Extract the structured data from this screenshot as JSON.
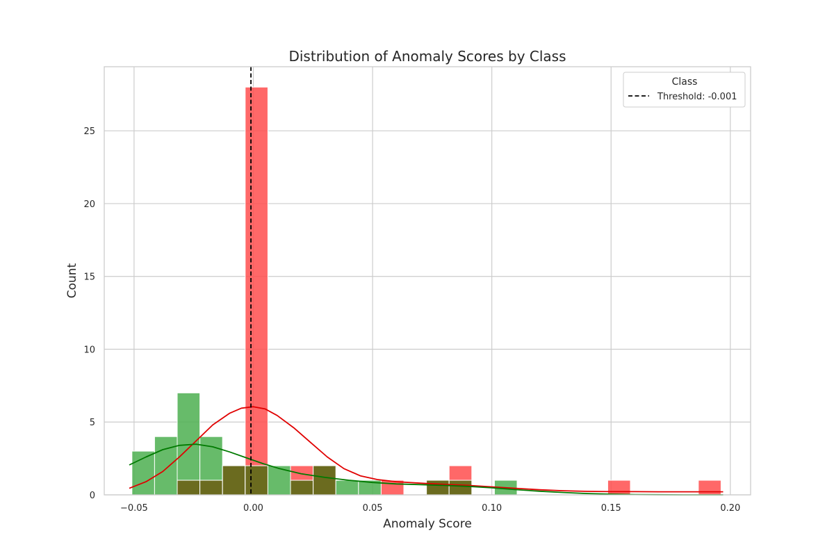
{
  "chart_data": {
    "type": "bar",
    "subtype": "overlaid-histogram-with-kde",
    "title": "Distribution of Anomaly Scores by Class",
    "xlabel": "Anomaly Score",
    "ylabel": "Count",
    "xlim": [
      -0.0625,
      0.2085
    ],
    "ylim": [
      0,
      29.4
    ],
    "xticks": [
      -0.05,
      0.0,
      0.05,
      0.1,
      0.15,
      0.2
    ],
    "xtick_labels": [
      "−0.05",
      "0.00",
      "0.05",
      "0.10",
      "0.15",
      "0.20"
    ],
    "yticks": [
      0,
      5,
      10,
      15,
      20,
      25
    ],
    "ytick_labels": [
      "0",
      "5",
      "10",
      "15",
      "20",
      "25"
    ],
    "grid": true,
    "bin_edges": [
      -0.0509,
      -0.0414,
      -0.0319,
      -0.0224,
      -0.0129,
      -0.0034,
      0.0061,
      0.0156,
      0.0251,
      0.0346,
      0.0441,
      0.0536,
      0.0631,
      0.0726,
      0.0821,
      0.0916,
      0.1011,
      0.1106,
      0.1201,
      0.1296,
      0.1391,
      0.1486,
      0.1581,
      0.1676,
      0.1771,
      0.1866,
      0.1961
    ],
    "series": [
      {
        "color": "#4caf50",
        "counts": [
          3,
          4,
          7,
          4,
          2,
          2,
          2,
          1,
          2,
          1,
          1,
          0,
          0,
          1,
          1,
          0,
          1,
          0,
          0,
          0,
          0,
          0,
          0,
          0,
          0,
          0
        ],
        "kde": {
          "x": [
            -0.052,
            -0.045,
            -0.038,
            -0.031,
            -0.024,
            -0.017,
            -0.01,
            -0.003,
            0.004,
            0.011,
            0.02,
            0.03,
            0.04,
            0.05,
            0.06,
            0.07,
            0.08,
            0.09,
            0.1,
            0.11,
            0.12,
            0.13,
            0.14,
            0.15,
            0.16,
            0.17,
            0.18,
            0.19,
            0.197
          ],
          "y": [
            2.05,
            2.6,
            3.1,
            3.4,
            3.48,
            3.3,
            2.95,
            2.55,
            2.15,
            1.8,
            1.45,
            1.2,
            1.0,
            0.85,
            0.75,
            0.7,
            0.65,
            0.58,
            0.48,
            0.36,
            0.25,
            0.16,
            0.09,
            0.05,
            0.02,
            0.01,
            0.0,
            0.0,
            0.0
          ]
        }
      },
      {
        "color": "#ff4d4d",
        "counts": [
          0,
          0,
          1,
          1,
          2,
          28,
          0,
          2,
          2,
          0,
          0,
          1,
          0,
          1,
          2,
          0,
          0,
          0,
          0,
          0,
          0,
          1,
          0,
          0,
          0,
          1
        ],
        "kde": {
          "x": [
            -0.052,
            -0.045,
            -0.038,
            -0.031,
            -0.024,
            -0.017,
            -0.01,
            -0.005,
            0.0,
            0.005,
            0.01,
            0.017,
            0.024,
            0.031,
            0.038,
            0.045,
            0.052,
            0.06,
            0.07,
            0.08,
            0.09,
            0.1,
            0.11,
            0.12,
            0.13,
            0.14,
            0.15,
            0.16,
            0.17,
            0.18,
            0.19,
            0.197
          ],
          "y": [
            0.45,
            0.9,
            1.6,
            2.6,
            3.7,
            4.8,
            5.6,
            5.95,
            6.05,
            5.9,
            5.45,
            4.6,
            3.6,
            2.6,
            1.8,
            1.3,
            1.05,
            0.9,
            0.8,
            0.72,
            0.65,
            0.55,
            0.45,
            0.35,
            0.28,
            0.24,
            0.22,
            0.22,
            0.21,
            0.21,
            0.21,
            0.21
          ]
        }
      }
    ],
    "overlap_color": "#6b6b1f",
    "threshold": {
      "x": -0.001,
      "color": "#000000"
    },
    "legend": {
      "title": "Class",
      "placement": "top-right",
      "entries": [
        {
          "label": "Threshold: -0.001",
          "style": "dashed",
          "color": "#000000"
        }
      ]
    }
  }
}
